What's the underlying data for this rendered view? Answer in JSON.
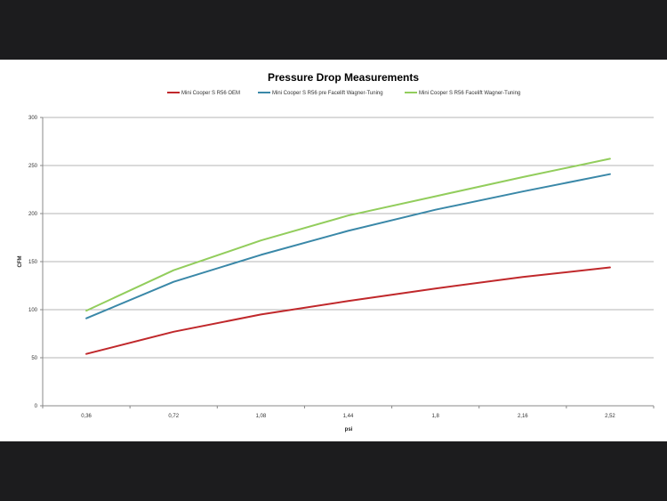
{
  "chart_data": {
    "type": "line",
    "title": "Pressure Drop Measurements",
    "xlabel": "psi",
    "ylabel": "CFM",
    "categories": [
      "0,36",
      "0,72",
      "1,08",
      "1,44",
      "1,8",
      "2,16",
      "2,52"
    ],
    "ylim": [
      0,
      300
    ],
    "yticks": [
      0,
      50,
      100,
      150,
      200,
      250,
      300
    ],
    "grid": true,
    "legend_position": "top",
    "series": [
      {
        "name": "Mini Cooper S R56 OEM",
        "color": "#c0282b",
        "values": [
          54,
          77,
          95,
          109,
          122,
          134,
          144
        ]
      },
      {
        "name": "Mini Cooper S R56 pre Facelift Wagner-Tuning",
        "color": "#3a88a8",
        "values": [
          91,
          129,
          157,
          182,
          204,
          223,
          241
        ]
      },
      {
        "name": "Mini Cooper S R56 Facelift Wagner-Tuning",
        "color": "#92cd5c",
        "values": [
          99,
          141,
          172,
          198,
          218,
          238,
          257
        ]
      }
    ]
  }
}
